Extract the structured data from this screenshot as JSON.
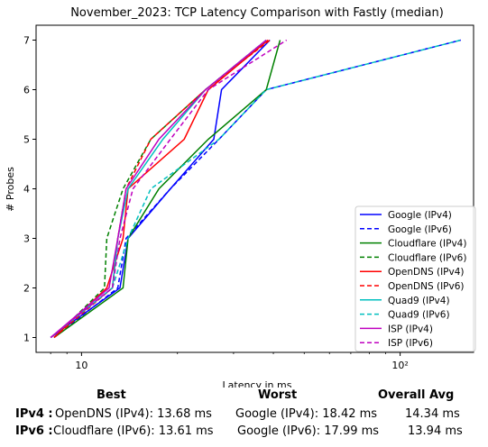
{
  "chart_data": {
    "type": "line",
    "title": "November_2023: TCP Latency Comparison with Fastly (median)",
    "xlabel": "Latency in ms",
    "ylabel": "# Probes",
    "xscale": "log",
    "xlim": [
      7.2,
      170
    ],
    "ylim": [
      0.7,
      7.3
    ],
    "xticks": [
      {
        "value": 10,
        "label": "10"
      },
      {
        "value": 100,
        "label": "10²"
      }
    ],
    "yticks": [
      1,
      2,
      3,
      4,
      5,
      6,
      7
    ],
    "legend": "lower-right",
    "series": [
      {
        "name": "Google (IPv4)",
        "color": "#0000ff",
        "dash": false,
        "x": [
          8.0,
          13.2,
          14.0,
          19.0,
          26.0,
          27.5,
          39.0
        ],
        "y": [
          1,
          2,
          3,
          4,
          5,
          6,
          7
        ]
      },
      {
        "name": "Google (IPv6)",
        "color": "#0000ff",
        "dash": true,
        "x": [
          8.2,
          13.0,
          13.8,
          19.0,
          27.0,
          38.0,
          155.0
        ],
        "y": [
          1,
          2,
          3,
          4,
          5,
          6,
          7
        ]
      },
      {
        "name": "Cloudflare (IPv4)",
        "color": "#008000",
        "dash": false,
        "x": [
          8.2,
          13.5,
          14.0,
          17.5,
          25.0,
          38.0,
          42.0
        ],
        "y": [
          1,
          2,
          3,
          4,
          5,
          6,
          7
        ]
      },
      {
        "name": "Cloudflare (IPv6)",
        "color": "#008000",
        "dash": true,
        "x": [
          8.2,
          11.8,
          12.0,
          13.5,
          16.5,
          24.5,
          38.0
        ],
        "y": [
          1,
          2,
          3,
          4,
          5,
          6,
          7
        ]
      },
      {
        "name": "OpenDNS (IPv4)",
        "color": "#ff0000",
        "dash": false,
        "x": [
          8.2,
          12.0,
          13.5,
          14.0,
          21.0,
          25.0,
          38.5
        ],
        "y": [
          1,
          2,
          3,
          4,
          5,
          6,
          7
        ]
      },
      {
        "name": "OpenDNS (IPv6)",
        "color": "#ff0000",
        "dash": true,
        "x": [
          8.2,
          12.5,
          13.0,
          13.8,
          16.5,
          24.5,
          39.0
        ],
        "y": [
          1,
          2,
          3,
          4,
          5,
          6,
          7
        ]
      },
      {
        "name": "Quad9 (IPv4)",
        "color": "#00bfbf",
        "dash": false,
        "x": [
          8.0,
          12.5,
          13.0,
          14.0,
          18.0,
          24.5,
          38.0
        ],
        "y": [
          1,
          2,
          3,
          4,
          5,
          6,
          7
        ]
      },
      {
        "name": "Quad9 (IPv6)",
        "color": "#00bfbf",
        "dash": true,
        "x": [
          8.0,
          12.5,
          14.0,
          16.5,
          27.0,
          38.0,
          155.0
        ],
        "y": [
          1,
          2,
          3,
          4,
          5,
          6,
          7
        ]
      },
      {
        "name": "ISP (IPv4)",
        "color": "#bf00bf",
        "dash": false,
        "x": [
          8.0,
          12.2,
          13.0,
          13.8,
          17.5,
          24.5,
          38.0
        ],
        "y": [
          1,
          2,
          3,
          4,
          5,
          6,
          7
        ]
      },
      {
        "name": "ISP (IPv6)",
        "color": "#bf00bf",
        "dash": true,
        "x": [
          8.0,
          12.5,
          13.2,
          14.5,
          19.0,
          25.0,
          44.0
        ],
        "y": [
          1,
          2,
          3,
          4,
          5,
          6,
          7
        ]
      }
    ]
  },
  "summary": {
    "headers": {
      "best": "Best",
      "worst": "Worst",
      "avg": "Overall Avg"
    },
    "rows": [
      {
        "label": "IPv4 :",
        "best": "OpenDNS (IPv4): 13.68 ms",
        "worst": "Google (IPv4): 18.42 ms",
        "avg": "14.34 ms"
      },
      {
        "label": "IPv6 :",
        "best": "Cloudflare (IPv6): 13.61 ms",
        "worst": "Google (IPv6): 17.99 ms",
        "avg": "13.94 ms"
      }
    ]
  }
}
